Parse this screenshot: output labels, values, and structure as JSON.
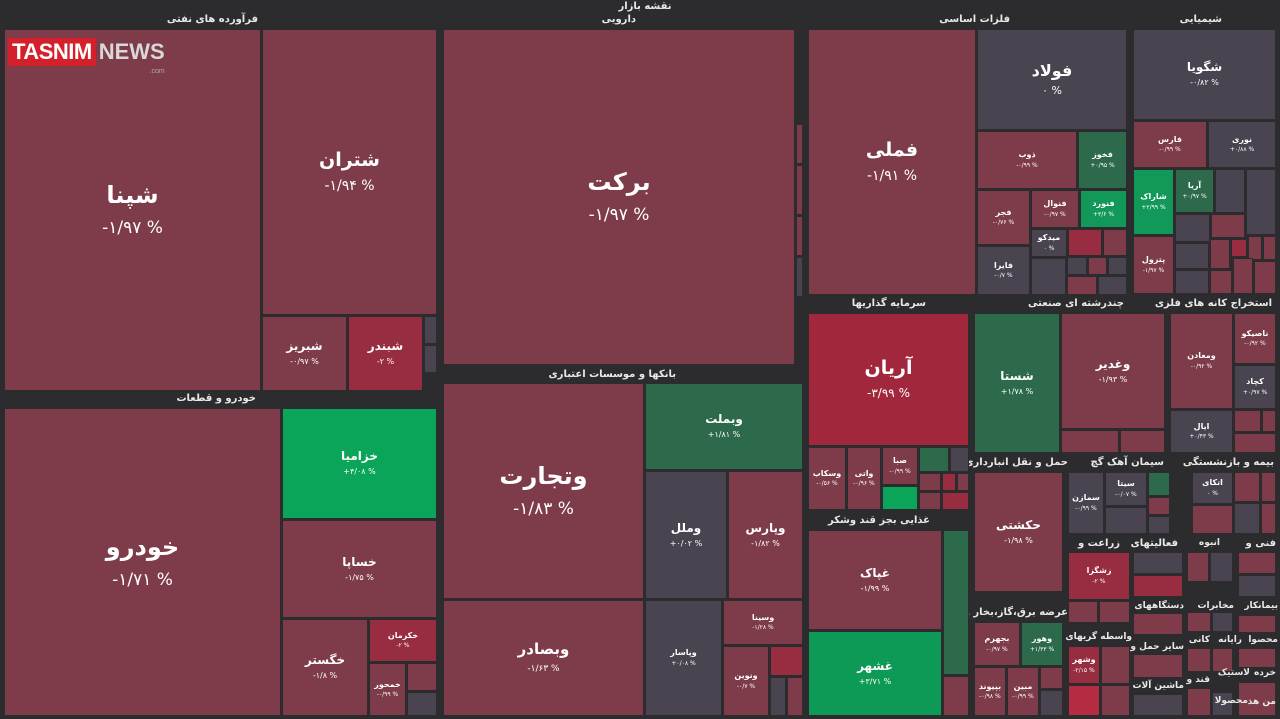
{
  "title": "نقشه بازار",
  "logo": {
    "brand": "TASNIM",
    "suffix": "NEWS",
    "tld": ".com"
  },
  "colors": {
    "background": "#2c2c2e",
    "red_dark": "#7e3c4a",
    "red_mid": "#8d2c40",
    "red_strong": "#a1283c",
    "gray": "#4a4450",
    "green_dark": "#2d6a4c",
    "green_bright": "#0aa558"
  },
  "sectors": [
    {
      "label": "فرآورده های نفتی"
    },
    {
      "label": "دارویی"
    },
    {
      "label": "فلزات اساسی"
    },
    {
      "label": "شیمیایی"
    },
    {
      "label": "خودرو و قطعات"
    },
    {
      "label": "بانکها و موسسات اعتباری"
    },
    {
      "label": "سرمایه گذاریها"
    },
    {
      "label": "چندرشته ای صنعتی"
    },
    {
      "label": "استخراج کانه های فلزی"
    },
    {
      "label": "غذایی بجز قند وشکر"
    },
    {
      "label": "حمل و نقل انبارداری و"
    },
    {
      "label": "سیمان آهک گچ"
    },
    {
      "label": "بیمه و بازنشستگی"
    },
    {
      "label": "زراعت و"
    },
    {
      "label": "فعالیتهای"
    },
    {
      "label": "فنی و"
    },
    {
      "label": "عرضه برق،گاز،بخار و"
    }
  ],
  "tiles": [
    {
      "name": "شپنا",
      "change": "% ۱/۹۷-"
    },
    {
      "name": "شتران",
      "change": "% ۱/۹۴-"
    },
    {
      "name": "شبریز",
      "change": "% ۰/۹۷-"
    },
    {
      "name": "شبندر",
      "change": "% ۲-"
    },
    {
      "name": "برکت",
      "change": "% ۱/۹۷-"
    },
    {
      "name": "فملی",
      "change": "% ۱/۹۱-"
    },
    {
      "name": "فولاد",
      "change": "% ۰"
    },
    {
      "name": "ذوب",
      "change": "% ۰/۹۹-"
    },
    {
      "name": "فخوز",
      "change": "% ۰/۹۵+"
    },
    {
      "name": "فجر",
      "change": "% ۰/۷۶-"
    },
    {
      "name": "فنوال",
      "change": "% ۰/۹۷-"
    },
    {
      "name": "فنورد",
      "change": "% ۳/۶+"
    },
    {
      "name": "میدکو",
      "change": "% ۰"
    },
    {
      "name": "فایرا",
      "change": "% ۰/۷-"
    },
    {
      "name": "شگویا",
      "change": "% ۰/۸۲-"
    },
    {
      "name": "فارس",
      "change": "% ۰/۹۹-"
    },
    {
      "name": "نوری",
      "change": "% ۰/۸۸+"
    },
    {
      "name": "شاراک",
      "change": "% ۲/۹۹+"
    },
    {
      "name": "آریا",
      "change": "% ۰/۹۷+"
    },
    {
      "name": "پترول",
      "change": "% ۱/۹۷-"
    },
    {
      "name": "خودرو",
      "change": "% ۱/۷۱-"
    },
    {
      "name": "خزامیا",
      "change": "% ۴/۰۸+"
    },
    {
      "name": "خساپا",
      "change": "% ۱/۷۵-"
    },
    {
      "name": "خگستر",
      "change": "% ۱/۸-"
    },
    {
      "name": "خکرمان",
      "change": "% ۲-"
    },
    {
      "name": "خمحور",
      "change": "% ۰/۹۹-"
    },
    {
      "name": "وتجارت",
      "change": "% ۱/۸۳-"
    },
    {
      "name": "وبملت",
      "change": "% ۱/۸۱+"
    },
    {
      "name": "وملل",
      "change": "% ۰/۰۲+"
    },
    {
      "name": "وپارس",
      "change": "% ۱/۸۲-"
    },
    {
      "name": "وبصادر",
      "change": "% ۱/۶۳-"
    },
    {
      "name": "وپاسار",
      "change": "% ۰/۰۸+"
    },
    {
      "name": "وسینا",
      "change": "% ۱/۲۸-"
    },
    {
      "name": "ونوین",
      "change": "% ۰/۷-"
    },
    {
      "name": "آریان",
      "change": "% ۳/۹۹-"
    },
    {
      "name": "وسکاب",
      "change": "% ۰/۵۶-"
    },
    {
      "name": "واتی",
      "change": "% ۰/۹۶-"
    },
    {
      "name": "صبا",
      "change": "% ۰/۹۹-"
    },
    {
      "name": "شستا",
      "change": "% ۱/۷۸+"
    },
    {
      "name": "وغدیر",
      "change": "% ۱/۹۳-"
    },
    {
      "name": "ومعادن",
      "change": "% ۰/۹۲-"
    },
    {
      "name": "ناصیکو",
      "change": "% ۰/۹۲-"
    },
    {
      "name": "کچاد",
      "change": "% ۰/۹۷+"
    },
    {
      "name": "ایال",
      "change": "% ۰/۴۳+"
    },
    {
      "name": "غپاک",
      "change": "% ۱/۹۹-"
    },
    {
      "name": "غشهر",
      "change": "% ۳/۷۱+"
    },
    {
      "name": "حکشتی",
      "change": "% ۱/۹۸-"
    },
    {
      "name": "سیتا",
      "change": "% ۰/۰۷-"
    },
    {
      "name": "سمازن",
      "change": "% ۰/۹۹-"
    },
    {
      "name": "اتکای",
      "change": "% ۰"
    },
    {
      "name": "زشگزا",
      "change": "% ۲-"
    },
    {
      "name": "بجهرم",
      "change": "% ۰/۹۷-"
    },
    {
      "name": "وهور",
      "change": "% ۱/۳۳+"
    },
    {
      "name": "بپیوند",
      "change": "% ۰/۹۸-"
    },
    {
      "name": "مبین",
      "change": "% ۰/۹۹-"
    },
    {
      "name": "وشهر",
      "change": "% ۲/۱۵-"
    }
  ],
  "labels": [
    "واسطه گریهای",
    "دستگاههای",
    "مخابرات",
    "سایر حمل و",
    "انبوه",
    "کانی",
    "رایانه",
    "بیمانکار",
    "ماشین آلات",
    "قند و",
    "لاستیک",
    "محصوا",
    "خرده",
    "محصولا",
    "من هذ"
  ]
}
